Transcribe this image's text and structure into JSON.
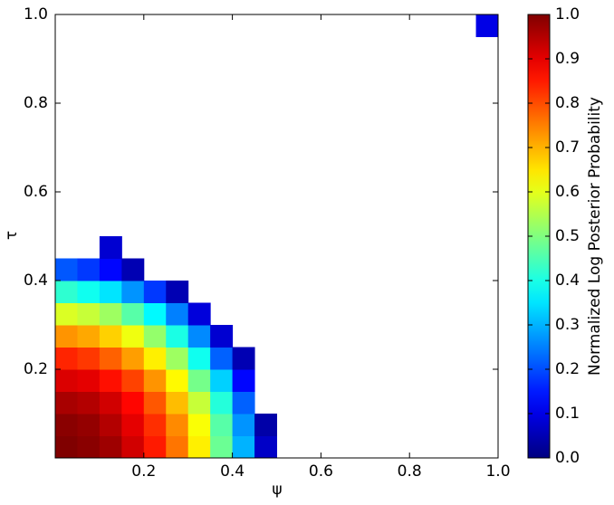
{
  "chart_data": {
    "type": "heatmap",
    "x_label": "ψ",
    "y_label": "τ",
    "colorbar_label": "Normalized Log Posterior Probability",
    "colormap": "jet",
    "xlim": [
      0,
      1
    ],
    "ylim": [
      0,
      1
    ],
    "clim": [
      0,
      1
    ],
    "xticks": [
      0.2,
      0.4,
      0.6,
      0.8,
      {
        "value": 1,
        "label": "1.0"
      }
    ],
    "yticks": [
      0.2,
      0.4,
      0.6,
      0.8,
      {
        "value": 1,
        "label": "1.0"
      }
    ],
    "cticks": [
      {
        "value": 0,
        "label": "0.0"
      },
      0.1,
      0.2,
      0.3,
      0.4,
      0.5,
      0.6,
      0.7,
      0.8,
      0.9,
      {
        "value": 1,
        "label": "1.0"
      }
    ],
    "z": [
      [
        1.0,
        0.99,
        0.97,
        0.92,
        0.85,
        0.76,
        0.64,
        0.48,
        0.3,
        0.07,
        null,
        null,
        null,
        null,
        null,
        null,
        null,
        null,
        null,
        null
      ],
      [
        0.99,
        0.98,
        0.95,
        0.9,
        0.83,
        0.74,
        0.62,
        0.46,
        0.27,
        0.04,
        null,
        null,
        null,
        null,
        null,
        null,
        null,
        null,
        null,
        null
      ],
      [
        0.96,
        0.95,
        0.92,
        0.87,
        0.79,
        0.69,
        0.57,
        0.41,
        0.22,
        null,
        null,
        null,
        null,
        null,
        null,
        null,
        null,
        null,
        null,
        null
      ],
      [
        0.91,
        0.9,
        0.86,
        0.81,
        0.73,
        0.63,
        0.49,
        0.33,
        0.13,
        null,
        null,
        null,
        null,
        null,
        null,
        null,
        null,
        null,
        null,
        null
      ],
      [
        0.84,
        0.82,
        0.78,
        0.72,
        0.64,
        0.53,
        0.39,
        0.22,
        0.05,
        null,
        null,
        null,
        null,
        null,
        null,
        null,
        null,
        null,
        null,
        null
      ],
      [
        0.73,
        0.71,
        0.67,
        0.61,
        0.52,
        0.4,
        0.26,
        0.08,
        null,
        null,
        null,
        null,
        null,
        null,
        null,
        null,
        null,
        null,
        null,
        null
      ],
      [
        0.59,
        0.57,
        0.53,
        0.46,
        0.37,
        0.25,
        0.09,
        null,
        null,
        null,
        null,
        null,
        null,
        null,
        null,
        null,
        null,
        null,
        null,
        null
      ],
      [
        0.42,
        0.39,
        0.35,
        0.27,
        0.18,
        0.05,
        null,
        null,
        null,
        null,
        null,
        null,
        null,
        null,
        null,
        null,
        null,
        null,
        null,
        null
      ],
      [
        0.21,
        0.18,
        0.13,
        0.05,
        null,
        null,
        null,
        null,
        null,
        null,
        null,
        null,
        null,
        null,
        null,
        null,
        null,
        null,
        null,
        null
      ],
      [
        null,
        null,
        0.08,
        null,
        null,
        null,
        null,
        null,
        null,
        null,
        null,
        null,
        null,
        null,
        null,
        null,
        null,
        null,
        null,
        null
      ],
      [
        null,
        null,
        null,
        null,
        null,
        null,
        null,
        null,
        null,
        null,
        null,
        null,
        null,
        null,
        null,
        null,
        null,
        null,
        null,
        null
      ],
      [
        null,
        null,
        null,
        null,
        null,
        null,
        null,
        null,
        null,
        null,
        null,
        null,
        null,
        null,
        null,
        null,
        null,
        null,
        null,
        null
      ],
      [
        null,
        null,
        null,
        null,
        null,
        null,
        null,
        null,
        null,
        null,
        null,
        null,
        null,
        null,
        null,
        null,
        null,
        null,
        null,
        null
      ],
      [
        null,
        null,
        null,
        null,
        null,
        null,
        null,
        null,
        null,
        null,
        null,
        null,
        null,
        null,
        null,
        null,
        null,
        null,
        null,
        null
      ],
      [
        null,
        null,
        null,
        null,
        null,
        null,
        null,
        null,
        null,
        null,
        null,
        null,
        null,
        null,
        null,
        null,
        null,
        null,
        null,
        null
      ],
      [
        null,
        null,
        null,
        null,
        null,
        null,
        null,
        null,
        null,
        null,
        null,
        null,
        null,
        null,
        null,
        null,
        null,
        null,
        null,
        null
      ],
      [
        null,
        null,
        null,
        null,
        null,
        null,
        null,
        null,
        null,
        null,
        null,
        null,
        null,
        null,
        null,
        null,
        null,
        null,
        null,
        null
      ],
      [
        null,
        null,
        null,
        null,
        null,
        null,
        null,
        null,
        null,
        null,
        null,
        null,
        null,
        null,
        null,
        null,
        null,
        null,
        null,
        null
      ],
      [
        null,
        null,
        null,
        null,
        null,
        null,
        null,
        null,
        null,
        null,
        null,
        null,
        null,
        null,
        null,
        null,
        null,
        null,
        null,
        null
      ],
      [
        null,
        null,
        null,
        null,
        null,
        null,
        null,
        null,
        null,
        null,
        null,
        null,
        null,
        null,
        null,
        null,
        null,
        null,
        null,
        0.1
      ]
    ]
  }
}
